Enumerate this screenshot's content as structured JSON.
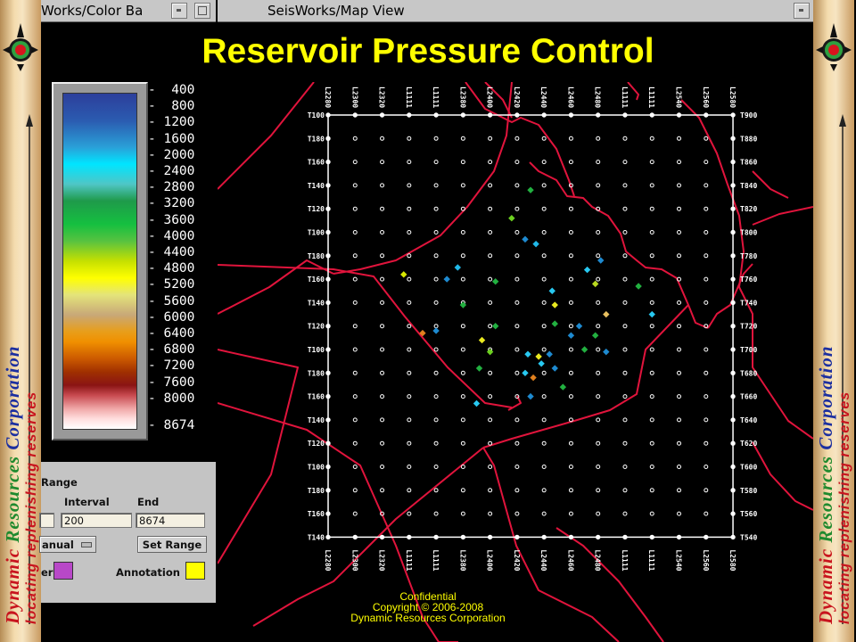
{
  "slide_title": "Reservoir Pressure Control",
  "branding": {
    "company": [
      "Dynamic",
      "Resources",
      "Corporation"
    ],
    "tagline": [
      "locating",
      "replenishing",
      "reserves"
    ],
    "colors": {
      "dynamic": "#c8141e",
      "resources": "#1f8a2e",
      "corporation": "#1c2fa0",
      "tagline": "#c8141e"
    }
  },
  "windows": {
    "color_bar_title": "Works/Color Ba",
    "map_view_title": "SeisWorks/Map View"
  },
  "color_bar": {
    "labels": [
      "400",
      "800",
      "1200",
      "1600",
      "2000",
      "2400",
      "2800",
      "3200",
      "3600",
      "4000",
      "4400",
      "4800",
      "5200",
      "5600",
      "6000",
      "6400",
      "6800",
      "7200",
      "7600",
      "8000",
      "8674"
    ]
  },
  "range_controls": {
    "section_label": "Range",
    "interval_label": "Interval",
    "end_label": "End",
    "interval_value": "200",
    "end_value": "8674",
    "mode_value": "anual",
    "set_range_label": "Set Range",
    "layer_label": "er",
    "annotation_label": "Annotation",
    "layer_color": "#b848c8",
    "annotation_color": "#ffff00"
  },
  "map": {
    "column_labels": [
      "L2280",
      "L2300",
      "L2320",
      "L1111",
      "L1111",
      "L2380",
      "L2400",
      "L2420",
      "L2440",
      "L2460",
      "L2480",
      "L1111",
      "L1111",
      "L2540",
      "L2560",
      "L2580"
    ],
    "row_labels": [
      "T900",
      "T880",
      "T860",
      "T840",
      "T820",
      "T800",
      "T780",
      "T760",
      "T740",
      "T720",
      "T700",
      "T680",
      "T660",
      "T640",
      "T620",
      "T600",
      "T580",
      "T560",
      "T540"
    ],
    "left_row_labels": [
      "T100",
      "T180",
      "T160",
      "T140",
      "T120",
      "T100",
      "T180",
      "T160",
      "T140",
      "T120",
      "T100",
      "T180",
      "T160",
      "T140",
      "T120",
      "T100",
      "T180",
      "T160",
      "T140"
    ],
    "boundary_color": "#e0143c",
    "grid_color": "#ffffff"
  },
  "wells": [
    {
      "col": 7.5,
      "row": 3.2,
      "color": "#22b040"
    },
    {
      "col": 6.8,
      "row": 4.4,
      "color": "#6cd020"
    },
    {
      "col": 7.3,
      "row": 5.3,
      "color": "#1e8ad0"
    },
    {
      "col": 7.7,
      "row": 5.5,
      "color": "#20b8e8"
    },
    {
      "col": 10.1,
      "row": 6.2,
      "color": "#1e8ad0"
    },
    {
      "col": 9.6,
      "row": 6.6,
      "color": "#28c8f0"
    },
    {
      "col": 2.8,
      "row": 6.8,
      "color": "#d8e800"
    },
    {
      "col": 4.8,
      "row": 6.5,
      "color": "#20b8e8"
    },
    {
      "col": 4.4,
      "row": 7.0,
      "color": "#1e8ad0"
    },
    {
      "col": 6.2,
      "row": 7.1,
      "color": "#22b040"
    },
    {
      "col": 9.9,
      "row": 7.2,
      "color": "#b8d820"
    },
    {
      "col": 11.5,
      "row": 7.3,
      "color": "#22b040"
    },
    {
      "col": 8.3,
      "row": 7.5,
      "color": "#28c8f0"
    },
    {
      "col": 5.0,
      "row": 8.1,
      "color": "#22b040"
    },
    {
      "col": 8.4,
      "row": 8.1,
      "color": "#e8e820"
    },
    {
      "col": 10.3,
      "row": 8.5,
      "color": "#e8c060"
    },
    {
      "col": 12.0,
      "row": 8.5,
      "color": "#28c8f0"
    },
    {
      "col": 8.4,
      "row": 8.9,
      "color": "#22b040"
    },
    {
      "col": 6.2,
      "row": 9.0,
      "color": "#22b040"
    },
    {
      "col": 9.3,
      "row": 9.0,
      "color": "#1e8ad0"
    },
    {
      "col": 3.5,
      "row": 9.3,
      "color": "#e0801e"
    },
    {
      "col": 4.0,
      "row": 9.2,
      "color": "#1e8ad0"
    },
    {
      "col": 9.0,
      "row": 9.4,
      "color": "#1e8ad0"
    },
    {
      "col": 9.9,
      "row": 9.4,
      "color": "#22b040"
    },
    {
      "col": 5.7,
      "row": 9.6,
      "color": "#e8e820"
    },
    {
      "col": 9.5,
      "row": 10.0,
      "color": "#22b040"
    },
    {
      "col": 10.3,
      "row": 10.1,
      "color": "#1e8ad0"
    },
    {
      "col": 6.0,
      "row": 10.1,
      "color": "#6cd020"
    },
    {
      "col": 7.8,
      "row": 10.3,
      "color": "#e8e820"
    },
    {
      "col": 7.4,
      "row": 10.2,
      "color": "#28c8f0"
    },
    {
      "col": 8.2,
      "row": 10.2,
      "color": "#1e8ad0"
    },
    {
      "col": 7.9,
      "row": 10.6,
      "color": "#28c8f0"
    },
    {
      "col": 5.6,
      "row": 10.8,
      "color": "#22b040"
    },
    {
      "col": 8.4,
      "row": 10.8,
      "color": "#1e8ad0"
    },
    {
      "col": 7.3,
      "row": 11.0,
      "color": "#28c8f0"
    },
    {
      "col": 7.6,
      "row": 11.2,
      "color": "#e0801e"
    },
    {
      "col": 8.7,
      "row": 11.6,
      "color": "#22b040"
    },
    {
      "col": 7.5,
      "row": 12.0,
      "color": "#1e8ad0"
    },
    {
      "col": 5.5,
      "row": 12.3,
      "color": "#28c8f0"
    }
  ],
  "footer": {
    "line1": "Confidential",
    "line2": "Copyright © 2006-2008",
    "line3": "Dynamic Resources Corporation"
  }
}
